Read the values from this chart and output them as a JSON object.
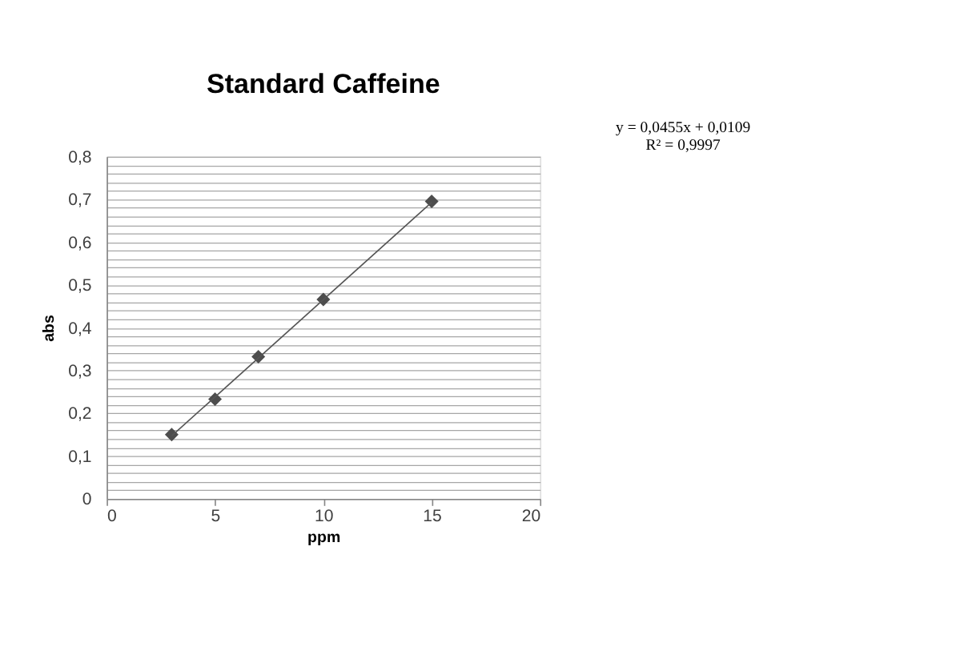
{
  "chart_data": {
    "type": "scatter",
    "title": "Standard Caffeine",
    "xlabel": "ppm",
    "ylabel": "abs",
    "x": [
      3,
      5,
      7,
      10,
      15
    ],
    "series": [
      {
        "type": "scatter",
        "color": "#4d4d4d",
        "marker": "diamond",
        "values": [
          0.15,
          0.233,
          0.332,
          0.466,
          0.695
        ]
      },
      {
        "type": "line",
        "color": "#555555",
        "line_style": "solid",
        "marker": "none",
        "x": [
          3,
          15
        ],
        "values": [
          0.147,
          0.693
        ]
      }
    ],
    "annotations": [
      "y = 0,0455x + 0,0109",
      "R² = 0,9997"
    ],
    "xlim": [
      0,
      20
    ],
    "xticks": [
      0,
      5,
      10,
      15,
      20
    ],
    "ylim": [
      0,
      0.8
    ],
    "yticks": [
      {
        "value": 0,
        "label": "0"
      },
      {
        "value": 0.02,
        "label": null
      },
      {
        "value": 0.04,
        "label": null
      },
      {
        "value": 0.06,
        "label": null
      },
      {
        "value": 0.08,
        "label": null
      },
      {
        "value": 0.1,
        "label": "0,1"
      },
      {
        "value": 0.12,
        "label": null
      },
      {
        "value": 0.14,
        "label": null
      },
      {
        "value": 0.16,
        "label": null
      },
      {
        "value": 0.18,
        "label": null
      },
      {
        "value": 0.2,
        "label": "0,2"
      },
      {
        "value": 0.22,
        "label": null
      },
      {
        "value": 0.24,
        "label": null
      },
      {
        "value": 0.26,
        "label": null
      },
      {
        "value": 0.28,
        "label": null
      },
      {
        "value": 0.3,
        "label": "0,3"
      },
      {
        "value": 0.32,
        "label": null
      },
      {
        "value": 0.34,
        "label": null
      },
      {
        "value": 0.36,
        "label": null
      },
      {
        "value": 0.38,
        "label": null
      },
      {
        "value": 0.4,
        "label": "0,4"
      },
      {
        "value": 0.42,
        "label": null
      },
      {
        "value": 0.44,
        "label": null
      },
      {
        "value": 0.46,
        "label": null
      },
      {
        "value": 0.48,
        "label": null
      },
      {
        "value": 0.5,
        "label": "0,5"
      },
      {
        "value": 0.52,
        "label": null
      },
      {
        "value": 0.54,
        "label": null
      },
      {
        "value": 0.56,
        "label": null
      },
      {
        "value": 0.58,
        "label": null
      },
      {
        "value": 0.6,
        "label": "0,6"
      },
      {
        "value": 0.62,
        "label": null
      },
      {
        "value": 0.64,
        "label": null
      },
      {
        "value": 0.66,
        "label": null
      },
      {
        "value": 0.68,
        "label": null
      },
      {
        "value": 0.7,
        "label": "0,7"
      },
      {
        "value": 0.72,
        "label": null
      },
      {
        "value": 0.74,
        "label": null
      },
      {
        "value": 0.76,
        "label": null
      },
      {
        "value": 0.78,
        "label": null
      },
      {
        "value": 0.8,
        "label": "0,8"
      }
    ],
    "grid": "y",
    "legend": false
  }
}
